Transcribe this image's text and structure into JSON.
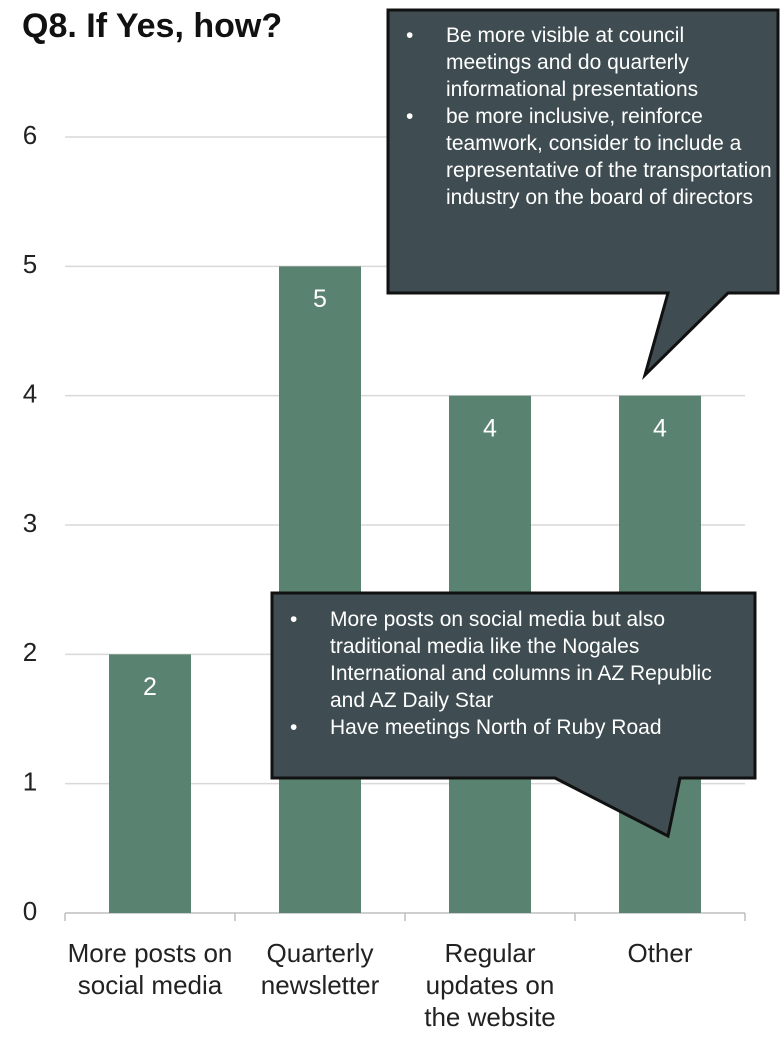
{
  "chart_data": {
    "type": "bar",
    "title": "Q8.  If Yes, how?",
    "categories": [
      "More posts on social media",
      "Quarterly newsletter",
      "Regular updates on the website",
      "Other"
    ],
    "values": [
      2,
      5,
      4,
      4
    ],
    "color": "#5a8270",
    "ylim": [
      0,
      6
    ],
    "yticks": [
      0,
      1,
      2,
      3,
      4,
      5,
      6
    ],
    "grid": true,
    "annotations": [
      {
        "items": [
          "Be more visible at council meetings and do quarterly informational presentations",
          "be more inclusive, reinforce teamwork, consider to include a representative of the transportation industry on the board of directors"
        ]
      },
      {
        "items": [
          "More posts on social media but also traditional media like the Nogales International and columns in AZ Republic and AZ Daily Star",
          "Have meetings North of Ruby Road"
        ]
      }
    ]
  }
}
